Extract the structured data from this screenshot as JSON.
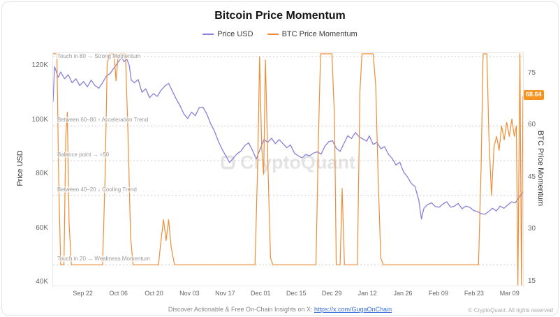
{
  "title": "Bitcoin Price Momentum",
  "legend": {
    "price": "Price USD",
    "momentum": "BTC Price Momentum"
  },
  "axes": {
    "left_title": "Price USD",
    "right_title": "BTC Price Momentum"
  },
  "watermark": "CryptoQuant",
  "badge_label": "68.64",
  "footer": {
    "text": "Discover Actionable & Free On-Chain Insights on X: ",
    "link": "https://x.com/GugaOnChain",
    "copyright": "© CryptoQuant. All rights reserved"
  },
  "colors": {
    "price": "#8781d9",
    "momentum": "#f08c33",
    "badge": "#f7941d",
    "annotation_line": "#cccccc"
  },
  "chart_data": {
    "type": "line",
    "title": "Bitcoin Price Momentum",
    "x_domain_days": [
      0,
      185
    ],
    "x_ticks": [
      {
        "day": 12,
        "label": "Sep 22"
      },
      {
        "day": 26,
        "label": "Oct 06"
      },
      {
        "day": 40,
        "label": "Oct 20"
      },
      {
        "day": 54,
        "label": "Nov 03"
      },
      {
        "day": 68,
        "label": "Nov 17"
      },
      {
        "day": 82,
        "label": "Dec 01"
      },
      {
        "day": 96,
        "label": "Dec 15"
      },
      {
        "day": 110,
        "label": "Dec 29"
      },
      {
        "day": 124,
        "label": "Jan 12"
      },
      {
        "day": 138,
        "label": "Jan 26"
      },
      {
        "day": 152,
        "label": "Feb 09"
      },
      {
        "day": 166,
        "label": "Feb 23"
      },
      {
        "day": 180,
        "label": "Mar 09"
      }
    ],
    "left_axis": {
      "title": "Price USD",
      "units": "thousand USD",
      "range": [
        39,
        125
      ],
      "ticks": [
        {
          "value": 120,
          "label": "120K"
        },
        {
          "value": 100,
          "label": "100K"
        },
        {
          "value": 80,
          "label": "80K"
        },
        {
          "value": 60,
          "label": "60K"
        },
        {
          "value": 40,
          "label": "40K"
        }
      ]
    },
    "right_axis": {
      "title": "BTC Price Momentum",
      "range": [
        14,
        81
      ],
      "ticks": [
        {
          "value": 75,
          "label": "75"
        },
        {
          "value": 60,
          "label": "60"
        },
        {
          "value": 45,
          "label": "45"
        },
        {
          "value": 30,
          "label": "30"
        },
        {
          "value": 15,
          "label": "15"
        }
      ]
    },
    "annotations": [
      {
        "value": 80,
        "label": "Touch in 80 → Strong Momentum"
      },
      {
        "value": 60,
        "label": "Between 60–80 ↑ Acceleration Trend"
      },
      {
        "value": 50,
        "label": "Balance point → ≈50"
      },
      {
        "value": 40,
        "label": "Between 40–20 ↓ Cooling Trend"
      },
      {
        "value": 20,
        "label": "Touch in 20 → Weakness Momentum"
      }
    ],
    "last_momentum_value": 68.64,
    "series": [
      {
        "name": "Price USD",
        "axis": "left",
        "color": "#8781d9",
        "points": [
          [
            0,
            107
          ],
          [
            0.6,
            120
          ],
          [
            2,
            116
          ],
          [
            3,
            118
          ],
          [
            4.5,
            115.5
          ],
          [
            6,
            117
          ],
          [
            7.5,
            114
          ],
          [
            9,
            115.5
          ],
          [
            10.5,
            113
          ],
          [
            12,
            114.5
          ],
          [
            13.5,
            112.5
          ],
          [
            15,
            115
          ],
          [
            16.5,
            113
          ],
          [
            18,
            112
          ],
          [
            19.5,
            114
          ],
          [
            21,
            116.5
          ],
          [
            22.5,
            117.5
          ],
          [
            24,
            119.5
          ],
          [
            25.5,
            121.5
          ],
          [
            27,
            123.3
          ],
          [
            28,
            121.8
          ],
          [
            29,
            122.8
          ],
          [
            30,
            120.5
          ],
          [
            30.8,
            115
          ],
          [
            32,
            114
          ],
          [
            33.5,
            115.2
          ],
          [
            35,
            110.5
          ],
          [
            36.5,
            111.8
          ],
          [
            38,
            108.5
          ],
          [
            39.5,
            110
          ],
          [
            41,
            109
          ],
          [
            42.5,
            111.2
          ],
          [
            44,
            112.8
          ],
          [
            45.5,
            113.8
          ],
          [
            47,
            110.8
          ],
          [
            48.5,
            108
          ],
          [
            50,
            105.5
          ],
          [
            51.5,
            102.5
          ],
          [
            53,
            100.8
          ],
          [
            54.5,
            103.2
          ],
          [
            56,
            101.8
          ],
          [
            57.5,
            104.8
          ],
          [
            59,
            105
          ],
          [
            60.5,
            102.5
          ],
          [
            62,
            99
          ],
          [
            63.5,
            96.2
          ],
          [
            65,
            92.5
          ],
          [
            66.5,
            89.5
          ],
          [
            68,
            87
          ],
          [
            69.5,
            84.5
          ],
          [
            71,
            86.2
          ],
          [
            72.5,
            87.8
          ],
          [
            74,
            88.8
          ],
          [
            75.5,
            90.8
          ],
          [
            77,
            91.8
          ],
          [
            78.5,
            89
          ],
          [
            80,
            85.8
          ],
          [
            81.5,
            89.5
          ],
          [
            83,
            93
          ],
          [
            84.5,
            92
          ],
          [
            86,
            93.5
          ],
          [
            87.5,
            91.5
          ],
          [
            89,
            93
          ],
          [
            90.5,
            91.5
          ],
          [
            92,
            90
          ],
          [
            93.5,
            91
          ],
          [
            95,
            88
          ],
          [
            96.5,
            87
          ],
          [
            98,
            86.2
          ],
          [
            99.5,
            87.5
          ],
          [
            101,
            87
          ],
          [
            102.5,
            88
          ],
          [
            104,
            88.5
          ],
          [
            105.5,
            87.6
          ],
          [
            107,
            90.5
          ],
          [
            108.5,
            92.2
          ],
          [
            110,
            92.6
          ],
          [
            111.5,
            89.8
          ],
          [
            113,
            88.6
          ],
          [
            114.5,
            91.5
          ],
          [
            116,
            94.4
          ],
          [
            117.5,
            93.4
          ],
          [
            119,
            95.6
          ],
          [
            120.5,
            94
          ],
          [
            122,
            93.2
          ],
          [
            123.5,
            92.4
          ],
          [
            124.5,
            94.4
          ],
          [
            126,
            91.2
          ],
          [
            127.5,
            92
          ],
          [
            129,
            89.6
          ],
          [
            130.5,
            90.4
          ],
          [
            132,
            87.6
          ],
          [
            133.5,
            86
          ],
          [
            135,
            83.6
          ],
          [
            136.5,
            84.6
          ],
          [
            138,
            81
          ],
          [
            139.5,
            79.2
          ],
          [
            141,
            76.8
          ],
          [
            142.5,
            75.6
          ],
          [
            144,
            70.6
          ],
          [
            145,
            63.6
          ],
          [
            146,
            67.6
          ],
          [
            147.5,
            69
          ],
          [
            149,
            69.6
          ],
          [
            150.5,
            68.2
          ],
          [
            152,
            68
          ],
          [
            153.5,
            69.2
          ],
          [
            155,
            70
          ],
          [
            156.5,
            68
          ],
          [
            158,
            68.4
          ],
          [
            159.5,
            69.4
          ],
          [
            161,
            67.4
          ],
          [
            162.5,
            68.4
          ],
          [
            164,
            68
          ],
          [
            165.5,
            66.8
          ],
          [
            167,
            66.4
          ],
          [
            168.5,
            65.6
          ],
          [
            170,
            65.4
          ],
          [
            171.5,
            66.4
          ],
          [
            173,
            67.6
          ],
          [
            174.5,
            66.6
          ],
          [
            176,
            68.4
          ],
          [
            177.5,
            67.6
          ],
          [
            179,
            68.8
          ],
          [
            180.5,
            70
          ],
          [
            182,
            69.6
          ],
          [
            183,
            71
          ],
          [
            184,
            72.4
          ],
          [
            185,
            73.6
          ]
        ]
      },
      {
        "name": "BTC Price Momentum",
        "axis": "right",
        "color": "#f08c33",
        "points": [
          [
            0,
            81
          ],
          [
            1.5,
            81
          ],
          [
            2.2,
            45
          ],
          [
            3,
            20
          ],
          [
            4.3,
            20
          ],
          [
            5,
            57
          ],
          [
            5.6,
            64
          ],
          [
            6.3,
            32
          ],
          [
            7.2,
            20
          ],
          [
            19.5,
            20
          ],
          [
            20.5,
            46
          ],
          [
            21.3,
            78
          ],
          [
            22.3,
            81
          ],
          [
            24,
            81
          ],
          [
            24.8,
            73
          ],
          [
            25.6,
            80
          ],
          [
            26.6,
            81
          ],
          [
            28.5,
            81
          ],
          [
            29.5,
            58
          ],
          [
            30.5,
            28
          ],
          [
            31.5,
            20
          ],
          [
            41.5,
            20
          ],
          [
            42.5,
            27
          ],
          [
            43.5,
            33
          ],
          [
            44.5,
            27
          ],
          [
            45.5,
            33
          ],
          [
            46.5,
            25
          ],
          [
            47.8,
            20
          ],
          [
            79.5,
            20
          ],
          [
            80.6,
            50
          ],
          [
            81.3,
            80
          ],
          [
            82.1,
            54
          ],
          [
            82.9,
            46
          ],
          [
            83.6,
            79
          ],
          [
            84.6,
            48
          ],
          [
            85.6,
            22
          ],
          [
            86.5,
            20
          ],
          [
            103.5,
            20
          ],
          [
            104.5,
            58
          ],
          [
            105.3,
            81
          ],
          [
            109.8,
            81
          ],
          [
            110.8,
            62
          ],
          [
            111.5,
            20
          ],
          [
            113,
            20
          ],
          [
            113.8,
            42
          ],
          [
            114.7,
            20
          ],
          [
            119.8,
            20
          ],
          [
            120.8,
            70
          ],
          [
            121.6,
            81
          ],
          [
            126,
            81
          ],
          [
            127,
            72
          ],
          [
            128,
            45
          ],
          [
            129,
            22
          ],
          [
            130,
            20
          ],
          [
            167.5,
            20
          ],
          [
            168.5,
            48
          ],
          [
            169.3,
            81
          ],
          [
            170.8,
            81
          ],
          [
            171.6,
            56
          ],
          [
            172.6,
            40
          ],
          [
            173.6,
            54
          ],
          [
            174.6,
            57
          ],
          [
            175.6,
            53
          ],
          [
            176.6,
            60
          ],
          [
            177.6,
            56
          ],
          [
            178.6,
            61
          ],
          [
            179.6,
            57
          ],
          [
            180.6,
            62
          ],
          [
            181.6,
            57
          ],
          [
            182.4,
            60
          ],
          [
            183,
            13
          ],
          [
            183.8,
            81
          ],
          [
            184.4,
            14
          ],
          [
            185,
            68.64
          ]
        ]
      }
    ]
  }
}
